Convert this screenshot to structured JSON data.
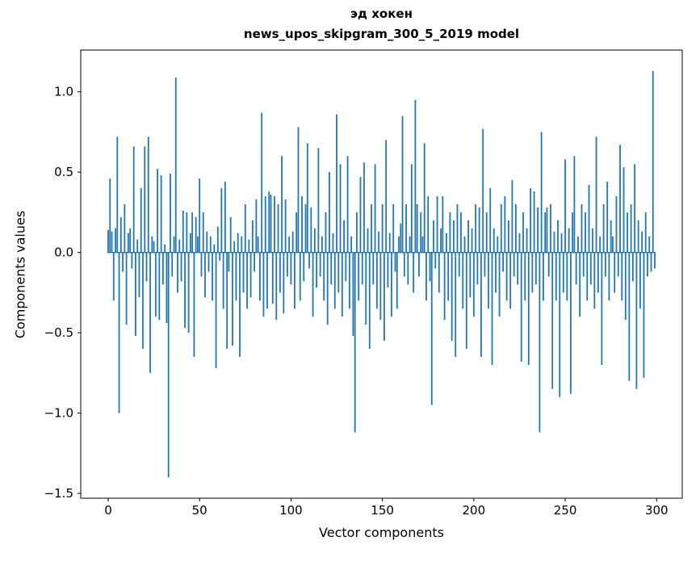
{
  "chart_data": {
    "type": "bar",
    "title": "эд хокен",
    "subtitle": "news_upos_skipgram_300_5_2019 model",
    "xlabel": "Vector components",
    "ylabel": "Components values",
    "bar_color": "#1f77b4",
    "grid": false,
    "legend": "none",
    "xlim": [
      -15,
      314
    ],
    "ylim": [
      -1.53,
      1.26
    ],
    "yticks": {
      "values": [
        -1.5,
        -1.0,
        -0.5,
        0.0,
        0.5,
        1.0
      ],
      "labels": [
        "−1.5",
        "−1.0",
        "−0.5",
        "0.0",
        "0.5",
        "1.0"
      ]
    },
    "xticks": {
      "values": [
        0,
        50,
        100,
        150,
        200,
        250,
        300
      ],
      "labels": [
        "0",
        "50",
        "100",
        "150",
        "200",
        "250",
        "300"
      ]
    },
    "x_start": 0,
    "n_components": 300,
    "values": [
      0.14,
      0.46,
      0.13,
      -0.3,
      0.15,
      0.72,
      -1.0,
      0.22,
      -0.12,
      0.3,
      -0.45,
      0.12,
      0.15,
      -0.1,
      0.66,
      -0.52,
      0.08,
      -0.28,
      0.4,
      -0.6,
      0.66,
      -0.18,
      0.72,
      -0.75,
      0.1,
      0.07,
      -0.4,
      0.52,
      -0.42,
      0.48,
      -0.2,
      0.05,
      -0.44,
      -1.4,
      0.49,
      -0.15,
      0.1,
      1.09,
      -0.25,
      0.08,
      -0.18,
      0.26,
      -0.47,
      0.25,
      -0.5,
      0.12,
      0.25,
      -0.65,
      0.22,
      0.1,
      0.46,
      -0.15,
      0.25,
      -0.28,
      0.13,
      -0.12,
      0.1,
      -0.3,
      0.05,
      -0.72,
      0.16,
      -0.05,
      0.4,
      -0.35,
      0.44,
      -0.6,
      -0.12,
      0.22,
      -0.58,
      0.07,
      -0.3,
      0.12,
      -0.65,
      0.1,
      -0.25,
      0.3,
      -0.35,
      0.08,
      -0.28,
      0.2,
      -0.12,
      0.33,
      0.1,
      -0.3,
      0.87,
      -0.4,
      0.35,
      -0.35,
      0.38,
      0.36,
      -0.32,
      0.35,
      -0.42,
      0.3,
      -0.25,
      0.6,
      -0.38,
      0.33,
      -0.15,
      0.1,
      -0.2,
      0.13,
      -0.35,
      0.25,
      0.78,
      -0.3,
      0.35,
      -0.18,
      0.3,
      0.68,
      -0.1,
      0.28,
      -0.4,
      0.15,
      -0.22,
      0.65,
      -0.15,
      0.1,
      -0.3,
      0.25,
      -0.45,
      0.5,
      -0.2,
      0.12,
      -0.35,
      0.86,
      -0.25,
      0.55,
      -0.4,
      0.2,
      -0.18,
      0.6,
      -0.35,
      0.1,
      -0.52,
      -1.12,
      0.25,
      -0.3,
      0.47,
      -0.2,
      0.56,
      -0.45,
      0.15,
      -0.6,
      0.3,
      -0.2,
      0.55,
      -0.35,
      0.13,
      -0.42,
      0.3,
      -0.55,
      0.7,
      -0.22,
      0.12,
      -0.4,
      0.3,
      -0.12,
      -0.35,
      0.1,
      0.18,
      0.85,
      -0.15,
      0.3,
      -0.2,
      0.1,
      0.55,
      -0.25,
      0.95,
      0.3,
      -0.15,
      0.25,
      0.1,
      0.68,
      -0.3,
      0.35,
      -0.18,
      -0.95,
      0.2,
      -0.1,
      0.35,
      -0.25,
      0.15,
      0.35,
      -0.42,
      0.12,
      -0.3,
      0.25,
      -0.55,
      0.2,
      -0.65,
      0.3,
      -0.15,
      0.25,
      -0.35,
      0.1,
      -0.6,
      0.2,
      -0.28,
      0.15,
      -0.4,
      0.3,
      -0.2,
      0.28,
      -0.65,
      0.77,
      -0.15,
      0.25,
      -0.35,
      0.4,
      -0.7,
      0.15,
      -0.25,
      0.1,
      -0.4,
      0.3,
      -0.12,
      0.35,
      -0.3,
      0.2,
      -0.35,
      0.45,
      -0.15,
      0.3,
      -0.2,
      0.12,
      -0.68,
      0.25,
      -0.3,
      0.15,
      -0.7,
      0.4,
      -0.25,
      0.38,
      -0.2,
      0.28,
      -1.12,
      0.75,
      -0.3,
      0.25,
      0.28,
      -0.15,
      0.3,
      -0.85,
      0.13,
      -0.3,
      0.2,
      -0.9,
      0.12,
      -0.25,
      0.58,
      -0.3,
      0.15,
      -0.88,
      0.25,
      0.6,
      -0.2,
      0.1,
      -0.4,
      0.3,
      -0.15,
      0.25,
      -0.3,
      0.42,
      -0.2,
      0.15,
      -0.35,
      0.72,
      -0.25,
      0.1,
      -0.7,
      0.3,
      -0.15,
      0.44,
      -0.3,
      0.2,
      0.1,
      -0.25,
      0.35,
      -0.15,
      0.67,
      -0.3,
      0.53,
      -0.42,
      0.25,
      -0.8,
      0.3,
      -0.18,
      0.55,
      -0.85,
      0.2,
      -0.35,
      0.13,
      -0.78,
      0.25,
      -0.15,
      0.1,
      -0.12,
      1.13,
      -0.1
    ]
  }
}
